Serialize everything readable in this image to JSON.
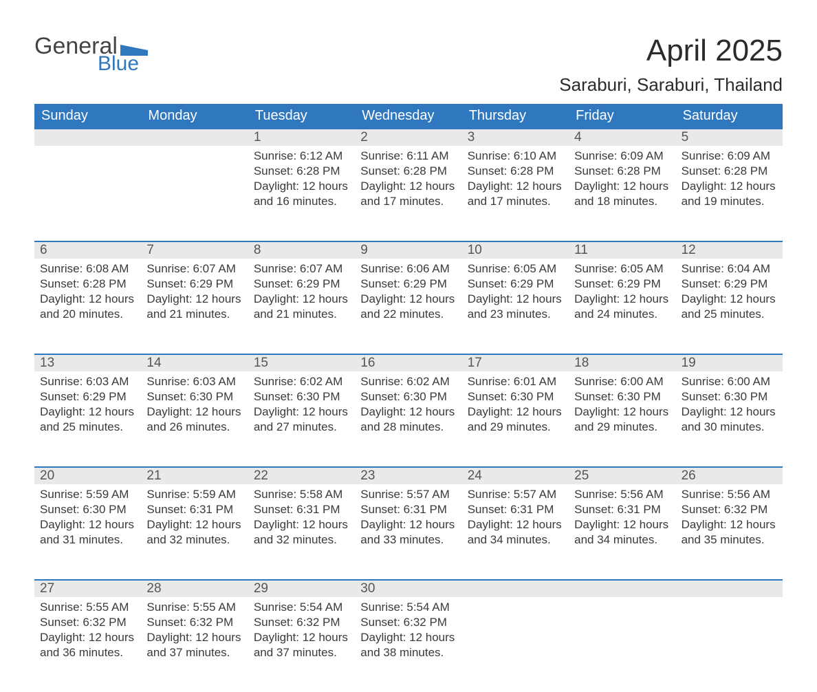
{
  "logo": {
    "text_general": "General",
    "text_blue": "Blue"
  },
  "title": "April 2025",
  "location": "Saraburi, Saraburi, Thailand",
  "colors": {
    "blue": "#2f78bf",
    "header_text": "#ffffff",
    "daynum_bg": "#e9e9e9",
    "body_text": "#3a3a3a",
    "title_text": "#2b2b2b",
    "page_bg": "#ffffff"
  },
  "typography": {
    "title_fontsize": 44,
    "location_fontsize": 26,
    "weekday_fontsize": 20,
    "daynum_fontsize": 19,
    "cell_fontsize": 17,
    "font_family": "Segoe UI / Helvetica Neue / Arial"
  },
  "weekdays": [
    "Sunday",
    "Monday",
    "Tuesday",
    "Wednesday",
    "Thursday",
    "Friday",
    "Saturday"
  ],
  "labels": {
    "sunrise": "Sunrise",
    "sunset": "Sunset",
    "daylight": "Daylight"
  },
  "weeks": [
    [
      null,
      null,
      {
        "n": "1",
        "sunrise": "6:12 AM",
        "sunset": "6:28 PM",
        "daylight_h": 12,
        "daylight_m": 16
      },
      {
        "n": "2",
        "sunrise": "6:11 AM",
        "sunset": "6:28 PM",
        "daylight_h": 12,
        "daylight_m": 17
      },
      {
        "n": "3",
        "sunrise": "6:10 AM",
        "sunset": "6:28 PM",
        "daylight_h": 12,
        "daylight_m": 17
      },
      {
        "n": "4",
        "sunrise": "6:09 AM",
        "sunset": "6:28 PM",
        "daylight_h": 12,
        "daylight_m": 18
      },
      {
        "n": "5",
        "sunrise": "6:09 AM",
        "sunset": "6:28 PM",
        "daylight_h": 12,
        "daylight_m": 19
      }
    ],
    [
      {
        "n": "6",
        "sunrise": "6:08 AM",
        "sunset": "6:28 PM",
        "daylight_h": 12,
        "daylight_m": 20
      },
      {
        "n": "7",
        "sunrise": "6:07 AM",
        "sunset": "6:29 PM",
        "daylight_h": 12,
        "daylight_m": 21
      },
      {
        "n": "8",
        "sunrise": "6:07 AM",
        "sunset": "6:29 PM",
        "daylight_h": 12,
        "daylight_m": 21
      },
      {
        "n": "9",
        "sunrise": "6:06 AM",
        "sunset": "6:29 PM",
        "daylight_h": 12,
        "daylight_m": 22
      },
      {
        "n": "10",
        "sunrise": "6:05 AM",
        "sunset": "6:29 PM",
        "daylight_h": 12,
        "daylight_m": 23
      },
      {
        "n": "11",
        "sunrise": "6:05 AM",
        "sunset": "6:29 PM",
        "daylight_h": 12,
        "daylight_m": 24
      },
      {
        "n": "12",
        "sunrise": "6:04 AM",
        "sunset": "6:29 PM",
        "daylight_h": 12,
        "daylight_m": 25
      }
    ],
    [
      {
        "n": "13",
        "sunrise": "6:03 AM",
        "sunset": "6:29 PM",
        "daylight_h": 12,
        "daylight_m": 25
      },
      {
        "n": "14",
        "sunrise": "6:03 AM",
        "sunset": "6:30 PM",
        "daylight_h": 12,
        "daylight_m": 26
      },
      {
        "n": "15",
        "sunrise": "6:02 AM",
        "sunset": "6:30 PM",
        "daylight_h": 12,
        "daylight_m": 27
      },
      {
        "n": "16",
        "sunrise": "6:02 AM",
        "sunset": "6:30 PM",
        "daylight_h": 12,
        "daylight_m": 28
      },
      {
        "n": "17",
        "sunrise": "6:01 AM",
        "sunset": "6:30 PM",
        "daylight_h": 12,
        "daylight_m": 29
      },
      {
        "n": "18",
        "sunrise": "6:00 AM",
        "sunset": "6:30 PM",
        "daylight_h": 12,
        "daylight_m": 29
      },
      {
        "n": "19",
        "sunrise": "6:00 AM",
        "sunset": "6:30 PM",
        "daylight_h": 12,
        "daylight_m": 30
      }
    ],
    [
      {
        "n": "20",
        "sunrise": "5:59 AM",
        "sunset": "6:30 PM",
        "daylight_h": 12,
        "daylight_m": 31
      },
      {
        "n": "21",
        "sunrise": "5:59 AM",
        "sunset": "6:31 PM",
        "daylight_h": 12,
        "daylight_m": 32
      },
      {
        "n": "22",
        "sunrise": "5:58 AM",
        "sunset": "6:31 PM",
        "daylight_h": 12,
        "daylight_m": 32
      },
      {
        "n": "23",
        "sunrise": "5:57 AM",
        "sunset": "6:31 PM",
        "daylight_h": 12,
        "daylight_m": 33
      },
      {
        "n": "24",
        "sunrise": "5:57 AM",
        "sunset": "6:31 PM",
        "daylight_h": 12,
        "daylight_m": 34
      },
      {
        "n": "25",
        "sunrise": "5:56 AM",
        "sunset": "6:31 PM",
        "daylight_h": 12,
        "daylight_m": 34
      },
      {
        "n": "26",
        "sunrise": "5:56 AM",
        "sunset": "6:32 PM",
        "daylight_h": 12,
        "daylight_m": 35
      }
    ],
    [
      {
        "n": "27",
        "sunrise": "5:55 AM",
        "sunset": "6:32 PM",
        "daylight_h": 12,
        "daylight_m": 36
      },
      {
        "n": "28",
        "sunrise": "5:55 AM",
        "sunset": "6:32 PM",
        "daylight_h": 12,
        "daylight_m": 37
      },
      {
        "n": "29",
        "sunrise": "5:54 AM",
        "sunset": "6:32 PM",
        "daylight_h": 12,
        "daylight_m": 37
      },
      {
        "n": "30",
        "sunrise": "5:54 AM",
        "sunset": "6:32 PM",
        "daylight_h": 12,
        "daylight_m": 38
      },
      null,
      null,
      null
    ]
  ]
}
